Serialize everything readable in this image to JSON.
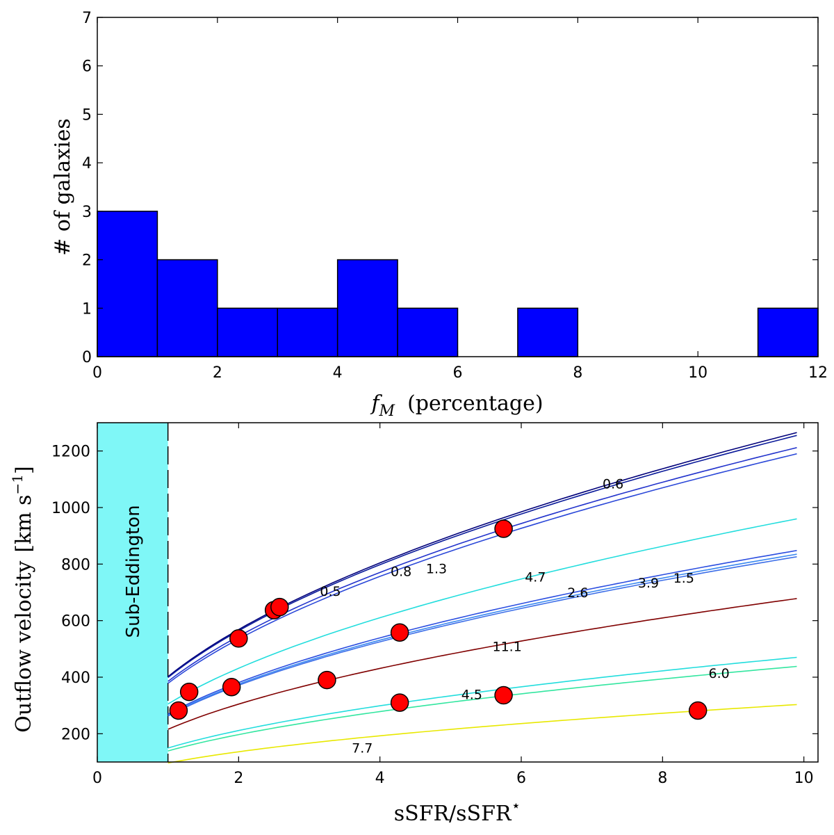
{
  "chart_data": [
    {
      "type": "bar",
      "title": "",
      "xlabel_symbol": "f",
      "xlabel_subscript": "M",
      "xlabel_rest": "(percentage)",
      "ylabel": "# of galaxies",
      "xlim": [
        0,
        12
      ],
      "ylim": [
        0,
        7
      ],
      "xticks": [
        "0",
        "2",
        "4",
        "6",
        "8",
        "10",
        "12"
      ],
      "yticks": [
        "0",
        "1",
        "2",
        "3",
        "4",
        "5",
        "6",
        "7"
      ],
      "bins": [
        {
          "from": 0,
          "to": 1,
          "count": 3
        },
        {
          "from": 1,
          "to": 2,
          "count": 2
        },
        {
          "from": 2,
          "to": 3,
          "count": 1
        },
        {
          "from": 3,
          "to": 4,
          "count": 1
        },
        {
          "from": 4,
          "to": 5,
          "count": 2
        },
        {
          "from": 5,
          "to": 6,
          "count": 1
        },
        {
          "from": 7,
          "to": 8,
          "count": 1
        },
        {
          "from": 11,
          "to": 12,
          "count": 1
        }
      ],
      "bar_color": "#0000ff"
    },
    {
      "type": "line",
      "title": "",
      "xlabel": "sSFR/sSFR",
      "xlabel_superscript": "⋆",
      "ylabel_text": "Outflow  velocity",
      "ylabel_units": "[km s",
      "ylabel_units_sup": "−1",
      "ylabel_units_close": "]",
      "xlim": [
        0,
        10.2
      ],
      "ylim": [
        100,
        1300
      ],
      "xticks": [
        "0",
        "2",
        "4",
        "6",
        "8",
        "10"
      ],
      "yticks": [
        "200",
        "400",
        "600",
        "800",
        "1000",
        "1200"
      ],
      "region": {
        "label": "Sub-Eddington",
        "x_from": 0,
        "x_to": 1,
        "color": "#7ff7f7"
      },
      "series": [
        {
          "name": "0.5",
          "color": "#00007a",
          "a": 1265
        },
        {
          "name": "0.6",
          "color": "#0a1a9a",
          "a": 1255
        },
        {
          "name": "0.8",
          "color": "#2233cc",
          "a": 1212
        },
        {
          "name": "1.3",
          "color": "#2a47d8",
          "a": 1190
        },
        {
          "name": "4.7",
          "color": "#22dddd",
          "a": 960
        },
        {
          "name": "2.6",
          "color": "#2b4ee0",
          "a": 848
        },
        {
          "name": "3.9",
          "color": "#3a88f0",
          "a": 835
        },
        {
          "name": "1.5",
          "color": "#3c6ee8",
          "a": 826
        },
        {
          "name": "11.1",
          "color": "#800000",
          "a": 678
        },
        {
          "name": "4.5",
          "color": "#22dddd",
          "a": 470
        },
        {
          "name": "6.0",
          "color": "#33e6a0",
          "a": 438
        },
        {
          "name": "7.7",
          "color": "#e8e800",
          "a": 303
        }
      ],
      "curve_x_range": [
        1,
        9.9
      ],
      "curve_exponent": 0.5,
      "contour_labels": [
        {
          "text": "0.6",
          "x": 7.3,
          "y": 1085
        },
        {
          "text": "0.8",
          "x": 4.3,
          "y": 775
        },
        {
          "text": "1.3",
          "x": 4.8,
          "y": 785
        },
        {
          "text": "0.5",
          "x": 3.3,
          "y": 705
        },
        {
          "text": "4.7",
          "x": 6.2,
          "y": 755
        },
        {
          "text": "2.6",
          "x": 6.8,
          "y": 700
        },
        {
          "text": "3.9",
          "x": 7.8,
          "y": 735
        },
        {
          "text": "1.5",
          "x": 8.3,
          "y": 752
        },
        {
          "text": "11.1",
          "x": 5.8,
          "y": 510
        },
        {
          "text": "4.5",
          "x": 5.3,
          "y": 340
        },
        {
          "text": "6.0",
          "x": 8.8,
          "y": 415
        },
        {
          "text": "7.7",
          "x": 3.75,
          "y": 150
        }
      ],
      "points": [
        {
          "x": 1.15,
          "y": 282
        },
        {
          "x": 1.3,
          "y": 348
        },
        {
          "x": 1.9,
          "y": 365
        },
        {
          "x": 2.0,
          "y": 537
        },
        {
          "x": 2.5,
          "y": 637
        },
        {
          "x": 2.58,
          "y": 648
        },
        {
          "x": 3.25,
          "y": 390
        },
        {
          "x": 4.28,
          "y": 558
        },
        {
          "x": 4.28,
          "y": 310
        },
        {
          "x": 5.75,
          "y": 925
        },
        {
          "x": 5.75,
          "y": 336
        },
        {
          "x": 8.5,
          "y": 282
        }
      ],
      "point_color": "#ff0000"
    }
  ]
}
